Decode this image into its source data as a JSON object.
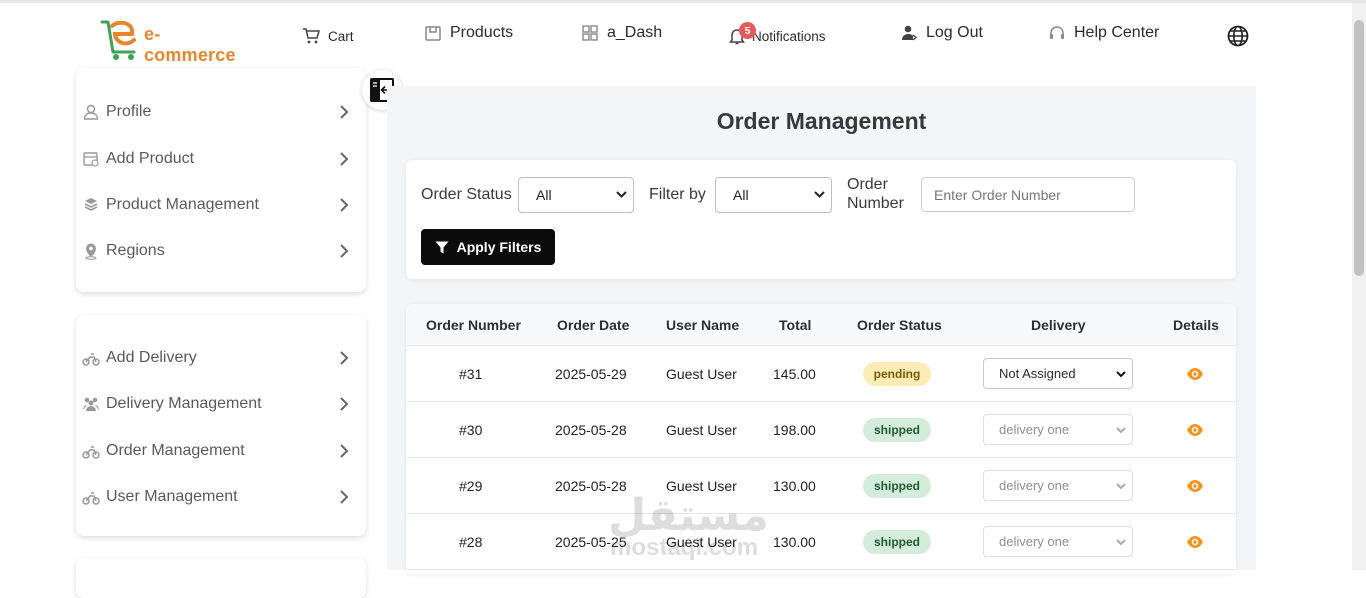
{
  "navbar": {
    "logo_text": "e-commerce",
    "cart": "Cart",
    "products": "Products",
    "dash": "a_Dash",
    "notifications": "Notifications",
    "notifications_count": "5",
    "logout": "Log Out",
    "help": "Help Center"
  },
  "sidebar": {
    "group1": [
      "Profile",
      "Add Product",
      "Product Management",
      "Regions"
    ],
    "group2": [
      "Add Delivery",
      "Delivery Management",
      "Order Management",
      "User Management"
    ]
  },
  "main": {
    "title": "Order Management",
    "filters": {
      "order_status_label": "Order Status",
      "order_status_value": "All",
      "filter_by_label": "Filter by",
      "filter_by_value": "All",
      "order_number_label_1": "Order",
      "order_number_label_2": "Number",
      "order_number_placeholder": "Enter Order Number",
      "apply_label": "Apply Filters"
    },
    "table": {
      "headers": [
        "Order Number",
        "Order Date",
        "User Name",
        "Total",
        "Order Status",
        "Delivery",
        "Details"
      ],
      "rows": [
        {
          "number": "#31",
          "date": "2025-05-29",
          "user": "Guest User",
          "total": "145.00",
          "status": "pending",
          "delivery": "Not Assigned"
        },
        {
          "number": "#30",
          "date": "2025-05-28",
          "user": "Guest User",
          "total": "198.00",
          "status": "shipped",
          "delivery": "delivery one"
        },
        {
          "number": "#29",
          "date": "2025-05-28",
          "user": "Guest User",
          "total": "130.00",
          "status": "shipped",
          "delivery": "delivery one"
        },
        {
          "number": "#28",
          "date": "2025-05-25",
          "user": "Guest User",
          "total": "130.00",
          "status": "shipped",
          "delivery": "delivery one"
        }
      ]
    }
  },
  "watermark": {
    "arabic": "مستقل",
    "latin": "mostaql.com"
  },
  "colors": {
    "brand_orange": "#e8862c",
    "brand_green": "#3aa655",
    "eye_orange": "#f0961f",
    "badge_red": "#e85a5a"
  }
}
